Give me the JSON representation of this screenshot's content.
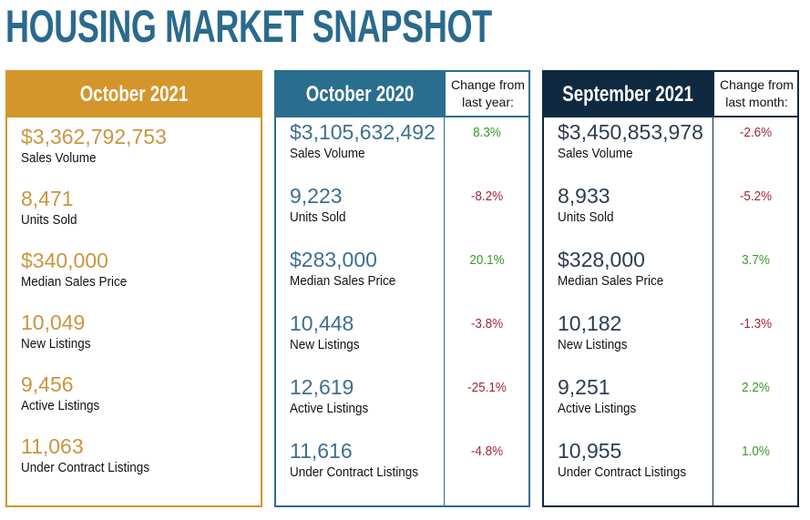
{
  "title": "HOUSING MARKET SNAPSHOT",
  "panels": [
    {
      "heading": "October 2021",
      "rows": [
        {
          "value": "$3,362,792,753",
          "label": "Sales Volume"
        },
        {
          "value": "8,471",
          "label": "Units Sold"
        },
        {
          "value": "$340,000",
          "label": "Median Sales Price"
        },
        {
          "value": "10,049",
          "label": "New Listings"
        },
        {
          "value": "9,456",
          "label": "Active Listings"
        },
        {
          "value": "11,063",
          "label": "Under Contract Listings"
        }
      ]
    },
    {
      "heading": "October 2020",
      "change_heading": "Change from last year:",
      "rows": [
        {
          "value": "$3,105,632,492",
          "label": "Sales Volume",
          "change": "8.3%"
        },
        {
          "value": "9,223",
          "label": "Units Sold",
          "change": "-8.2%"
        },
        {
          "value": "$283,000",
          "label": "Median Sales Price",
          "change": "20.1%"
        },
        {
          "value": "10,448",
          "label": "New Listings",
          "change": "-3.8%"
        },
        {
          "value": "12,619",
          "label": "Active Listings",
          "change": "-25.1%"
        },
        {
          "value": "11,616",
          "label": "Under Contract Listings",
          "change": "-4.8%"
        }
      ]
    },
    {
      "heading": "September 2021",
      "change_heading": "Change from last month:",
      "rows": [
        {
          "value": "$3,450,853,978",
          "label": "Sales Volume",
          "change": "-2.6%"
        },
        {
          "value": "8,933",
          "label": "Units Sold",
          "change": "-5.2%"
        },
        {
          "value": "$328,000",
          "label": "Median Sales Price",
          "change": "3.7%"
        },
        {
          "value": "10,182",
          "label": "New Listings",
          "change": "-1.3%"
        },
        {
          "value": "9,251",
          "label": "Active Listings",
          "change": "2.2%"
        },
        {
          "value": "10,955",
          "label": "Under Contract Listings",
          "change": "1.0%"
        }
      ]
    }
  ]
}
